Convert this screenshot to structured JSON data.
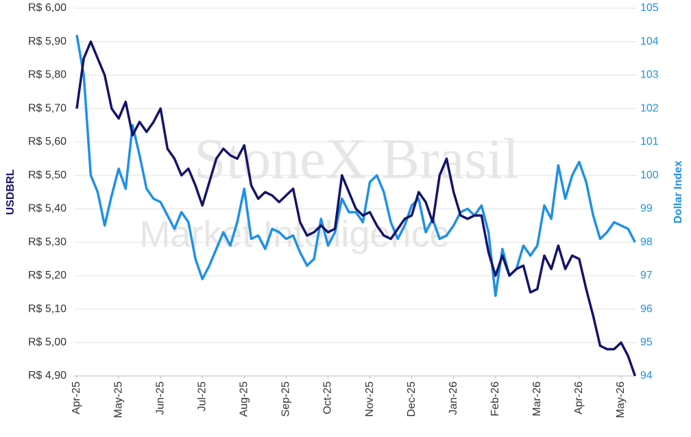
{
  "chart_data": {
    "type": "line",
    "watermark": [
      "StoneX Brasil",
      "Market Intelligence"
    ],
    "ylabel": "USDBRL",
    "y2label": "Dollar Index",
    "categories": [
      "Apr-25",
      null,
      null,
      null,
      null,
      null,
      "May-25",
      null,
      null,
      null,
      null,
      null,
      "Jun-25",
      null,
      null,
      null,
      null,
      null,
      "Jul-25",
      null,
      null,
      null,
      null,
      null,
      "Aug-25",
      null,
      null,
      null,
      null,
      null,
      "Sep-25",
      null,
      null,
      null,
      null,
      null,
      "Oct-25",
      null,
      null,
      null,
      null,
      null,
      "Nov-25",
      null,
      null,
      null,
      null,
      null,
      "Dec-25",
      null,
      null,
      null,
      null,
      null,
      "Jan-26",
      null,
      null,
      null,
      null,
      null,
      "Feb-26",
      null,
      null,
      null,
      null,
      null,
      "Mar-26",
      null,
      null,
      null,
      null,
      null,
      "Apr-26",
      null,
      null,
      null,
      null,
      null,
      "May-26",
      null,
      null
    ],
    "series": [
      {
        "name": "USDBRL",
        "color": "#14146b",
        "axis": "y",
        "values": [
          5.7,
          5.85,
          5.9,
          5.85,
          5.8,
          5.7,
          5.67,
          5.72,
          5.62,
          5.66,
          5.63,
          5.66,
          5.7,
          5.58,
          5.55,
          5.5,
          5.52,
          5.47,
          5.41,
          5.48,
          5.55,
          5.58,
          5.56,
          5.55,
          5.59,
          5.47,
          5.43,
          5.45,
          5.44,
          5.42,
          5.44,
          5.46,
          5.36,
          5.32,
          5.33,
          5.35,
          5.33,
          5.34,
          5.5,
          5.45,
          5.4,
          5.38,
          5.39,
          5.35,
          5.32,
          5.31,
          5.34,
          5.37,
          5.38,
          5.45,
          5.42,
          5.36,
          5.5,
          5.55,
          5.45,
          5.38,
          5.37,
          5.38,
          5.38,
          5.27,
          5.2,
          5.26,
          5.2,
          5.22,
          5.23,
          5.15,
          5.16,
          5.26,
          5.22,
          5.29,
          5.22,
          5.26,
          5.25,
          5.16,
          5.08,
          4.99,
          4.98,
          4.98,
          5.0,
          4.96,
          4.9
        ]
      },
      {
        "name": "Dollar Index",
        "color": "#1e90e6",
        "axis": "y2",
        "values": [
          104.2,
          103.0,
          100.0,
          99.5,
          98.5,
          99.4,
          100.2,
          99.6,
          101.5,
          100.6,
          99.6,
          99.3,
          99.2,
          98.8,
          98.4,
          98.9,
          98.6,
          97.5,
          96.9,
          97.3,
          97.8,
          98.3,
          97.9,
          98.6,
          99.6,
          98.1,
          98.2,
          97.8,
          98.4,
          98.3,
          98.1,
          98.2,
          97.7,
          97.3,
          97.5,
          98.7,
          97.9,
          98.3,
          99.3,
          98.9,
          98.9,
          98.6,
          99.8,
          100.0,
          99.5,
          98.6,
          98.1,
          98.5,
          99.1,
          99.3,
          98.3,
          98.7,
          98.1,
          98.2,
          98.5,
          98.9,
          99.0,
          98.8,
          99.1,
          98.3,
          96.4,
          97.8,
          97.0,
          97.2,
          97.9,
          97.6,
          97.9,
          99.1,
          98.7,
          100.3,
          99.3,
          100.0,
          100.4,
          99.8,
          98.8,
          98.1,
          98.3,
          98.6,
          98.5,
          98.4,
          98.0
        ]
      }
    ],
    "ylim": [
      4.9,
      6.0
    ],
    "yticks": [
      {
        "value": 4.9,
        "label": "R$ 4,90"
      },
      {
        "value": 5.0,
        "label": "R$ 5,00"
      },
      {
        "value": 5.1,
        "label": "R$ 5,10"
      },
      {
        "value": 5.2,
        "label": "R$ 5,20"
      },
      {
        "value": 5.3,
        "label": "R$ 5,30"
      },
      {
        "value": 5.4,
        "label": "R$ 5,40"
      },
      {
        "value": 5.5,
        "label": "R$ 5,50"
      },
      {
        "value": 5.6,
        "label": "R$ 5,60"
      },
      {
        "value": 5.7,
        "label": "R$ 5,70"
      },
      {
        "value": 5.8,
        "label": "R$ 5,80"
      },
      {
        "value": 5.9,
        "label": "R$ 5,90"
      },
      {
        "value": 6.0,
        "label": "R$ 6,00"
      }
    ],
    "y2lim": [
      94,
      105
    ],
    "y2ticks": [
      94,
      95,
      96,
      97,
      98,
      99,
      100,
      101,
      102,
      103,
      104,
      105
    ],
    "grid": true
  }
}
